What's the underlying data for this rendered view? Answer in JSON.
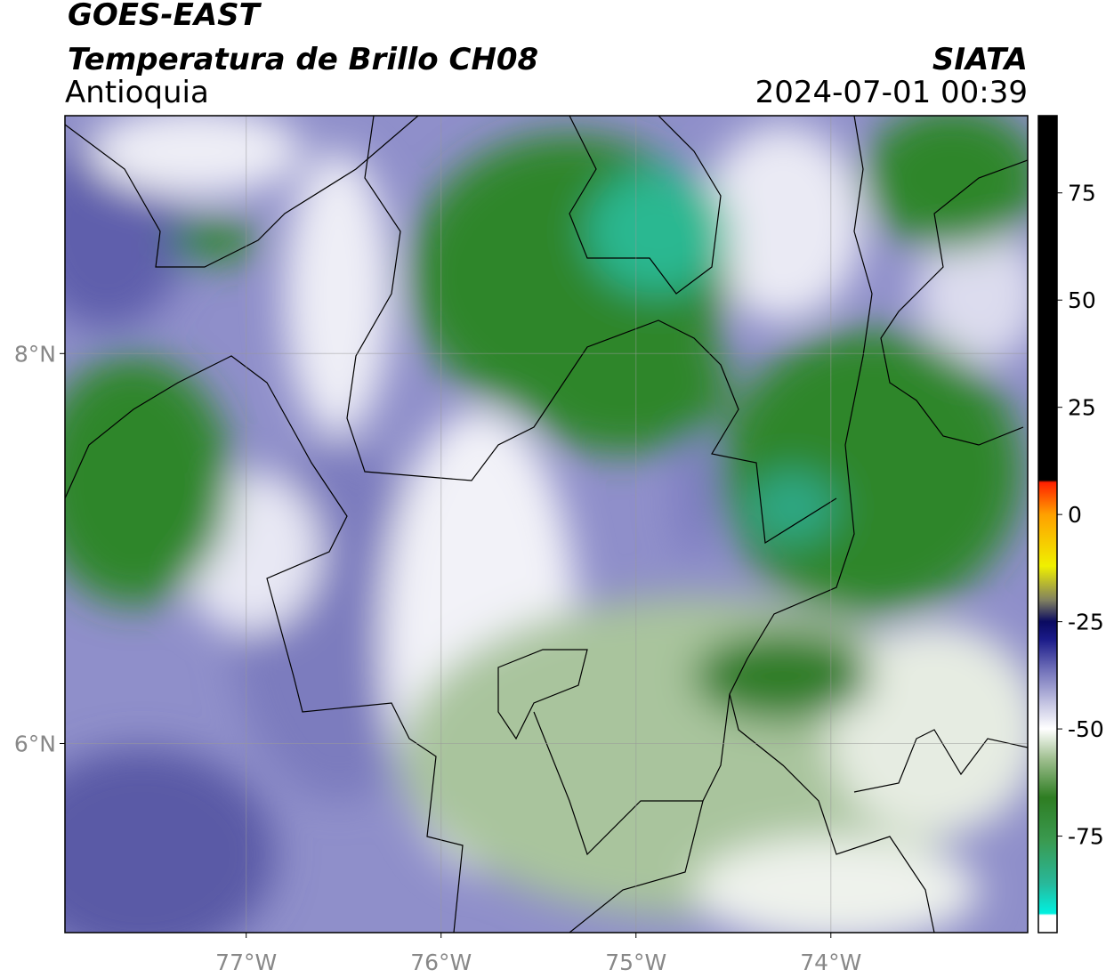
{
  "chart_data": {
    "type": "map",
    "title": "GOES-EAST",
    "subtitle": "Temperatura de Brillo CH08",
    "region": "Antioquia",
    "source": "SIATA",
    "timestamp": "2024-07-01 00:39",
    "xlim": [
      -77.93,
      -72.99
    ],
    "xticks": [
      {
        "value": -77,
        "label": "77°W"
      },
      {
        "value": -76,
        "label": "76°W"
      },
      {
        "value": -75,
        "label": "75°W"
      },
      {
        "value": -74,
        "label": "74°W"
      }
    ],
    "ylim": [
      5.03,
      9.22
    ],
    "yticks": [
      {
        "value": 6,
        "label": "6°N"
      },
      {
        "value": 8,
        "label": "8°N"
      }
    ],
    "grid": true,
    "colorbar": {
      "lim": [
        -97.5,
        93
      ],
      "ticks": [
        -75,
        -50,
        -25,
        0,
        25,
        50,
        75
      ],
      "stops": [
        {
          "value": -97.5,
          "color": "#ffffff"
        },
        {
          "value": -93.5,
          "color": "#ffffff"
        },
        {
          "value": -93,
          "color": "#00f0e0"
        },
        {
          "value": -86,
          "color": "#28b89a"
        },
        {
          "value": -76,
          "color": "#3a9a50"
        },
        {
          "value": -66,
          "color": "#2e7d22"
        },
        {
          "value": -57,
          "color": "#9fbf8f"
        },
        {
          "value": -50,
          "color": "#ffffff"
        },
        {
          "value": -44,
          "color": "#c4c4e2"
        },
        {
          "value": -36,
          "color": "#6e6eb8"
        },
        {
          "value": -29,
          "color": "#1a1a88"
        },
        {
          "value": -25,
          "color": "#0a0a60"
        },
        {
          "value": -20,
          "color": "#808060"
        },
        {
          "value": -12,
          "color": "#f0f000"
        },
        {
          "value": 0,
          "color": "#ffa000"
        },
        {
          "value": 7.5,
          "color": "#ff2000"
        },
        {
          "value": 8,
          "color": "#000000"
        },
        {
          "value": 93,
          "color": "#000000"
        }
      ]
    }
  }
}
